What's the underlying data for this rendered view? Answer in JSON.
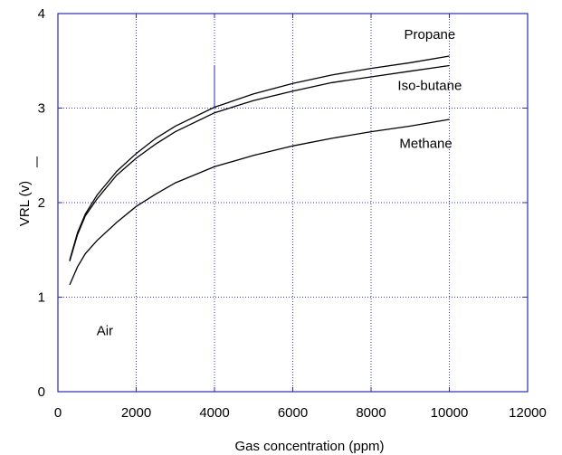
{
  "chart_data": {
    "type": "line",
    "title": "",
    "xlabel": "Gas concentration (ppm)",
    "ylabel": "VRL (v)",
    "xlim": [
      0,
      12000
    ],
    "ylim": [
      0,
      4
    ],
    "x_ticks": [
      "0",
      "2000",
      "4000",
      "6000",
      "8000",
      "10000",
      "12000"
    ],
    "y_ticks": [
      "0",
      "1",
      "2",
      "3",
      "4"
    ],
    "grid": true,
    "grid_color": "#3b3bcf",
    "frame_color": "#2a2ab8",
    "line_color": "#000000",
    "legend": "labels next to curves",
    "annotations": [
      {
        "text": "Air",
        "x": 1200,
        "y": 0.6
      }
    ],
    "series": [
      {
        "name": "Propane",
        "x": [
          300,
          500,
          700,
          1000,
          1500,
          2000,
          2500,
          3000,
          4000,
          5000,
          6000,
          7000,
          8000,
          9000,
          10000
        ],
        "y": [
          1.39,
          1.68,
          1.88,
          2.08,
          2.33,
          2.52,
          2.68,
          2.81,
          3.01,
          3.15,
          3.26,
          3.35,
          3.42,
          3.48,
          3.55
        ]
      },
      {
        "name": "Iso-butane",
        "x": [
          300,
          500,
          700,
          1000,
          1500,
          2000,
          2500,
          3000,
          4000,
          5000,
          6000,
          7000,
          8000,
          9000,
          10000
        ],
        "y": [
          1.38,
          1.66,
          1.86,
          2.04,
          2.29,
          2.47,
          2.62,
          2.75,
          2.95,
          3.08,
          3.18,
          3.27,
          3.33,
          3.39,
          3.45
        ]
      },
      {
        "name": "Methane",
        "x": [
          300,
          500,
          700,
          1000,
          1500,
          2000,
          2500,
          3000,
          4000,
          5000,
          6000,
          7000,
          8000,
          9000,
          10000
        ],
        "y": [
          1.13,
          1.32,
          1.46,
          1.6,
          1.79,
          1.96,
          2.09,
          2.21,
          2.38,
          2.5,
          2.6,
          2.68,
          2.75,
          2.81,
          2.88
        ]
      }
    ],
    "series_label_anchor": [
      {
        "x": 9500,
        "y": 3.73
      },
      {
        "x": 9500,
        "y": 3.19
      },
      {
        "x": 9400,
        "y": 2.58
      }
    ]
  }
}
